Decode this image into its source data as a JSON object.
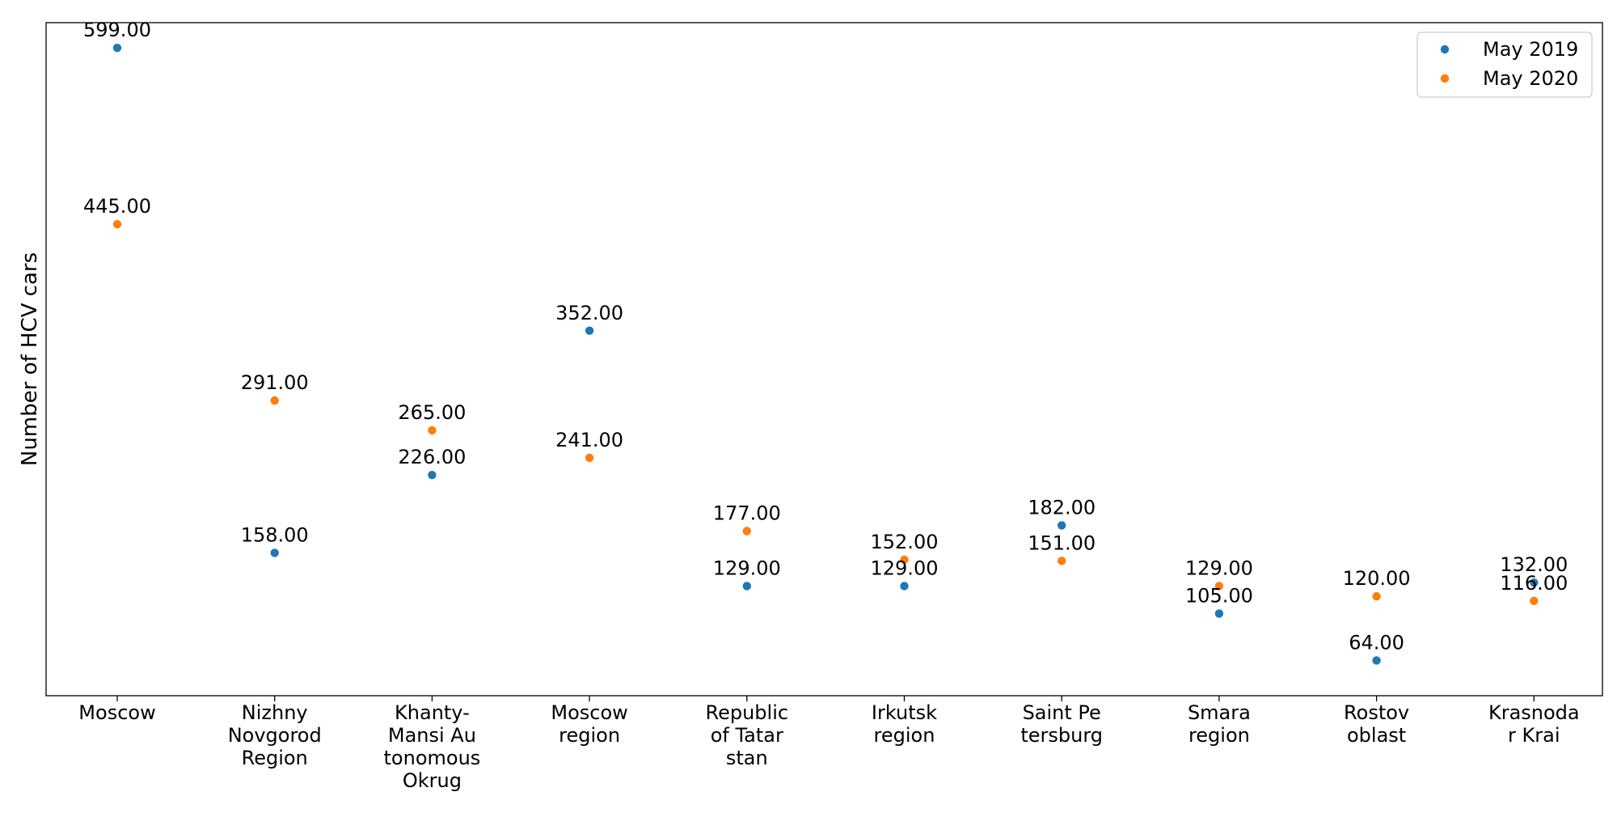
{
  "chart_data": {
    "type": "scatter",
    "title": "",
    "xlabel": "",
    "ylabel": "Number of HCV cars",
    "categories": [
      [
        "Moscow"
      ],
      [
        "Nizhny",
        "Novgorod",
        "Region"
      ],
      [
        "Khanty-",
        "Mansi Au",
        "tonomous",
        "Okrug"
      ],
      [
        "Moscow",
        "region"
      ],
      [
        "Republic",
        "of Tatar",
        "stan"
      ],
      [
        "Irkutsk",
        "region"
      ],
      [
        "Saint Pe",
        "tersburg"
      ],
      [
        "Smara",
        "region"
      ],
      [
        "Rostov",
        "oblast"
      ],
      [
        "Krasnoda",
        "r Krai"
      ]
    ],
    "series": [
      {
        "name": "May 2019",
        "color": "#1f77b4",
        "values": [
          599,
          158,
          226,
          352,
          129,
          129,
          182,
          105,
          64,
          132
        ],
        "labels": [
          "599.00",
          "158.00",
          "226.00",
          "352.00",
          "129.00",
          "129.00",
          "182.00",
          "105.00",
          "64.00",
          "132.00"
        ]
      },
      {
        "name": "May 2020",
        "color": "#ff7f0e",
        "values": [
          445,
          291,
          265,
          241,
          177,
          152,
          151,
          129,
          120,
          116
        ],
        "labels": [
          "445.00",
          "291.00",
          "265.00",
          "241.00",
          "177.00",
          "152.00",
          "151.00",
          "129.00",
          "120.00",
          "116.00"
        ]
      }
    ],
    "ylim": [
      33.25,
      621
    ],
    "y_ticks_shown": false,
    "grid": false,
    "legend_position": "top-right"
  }
}
